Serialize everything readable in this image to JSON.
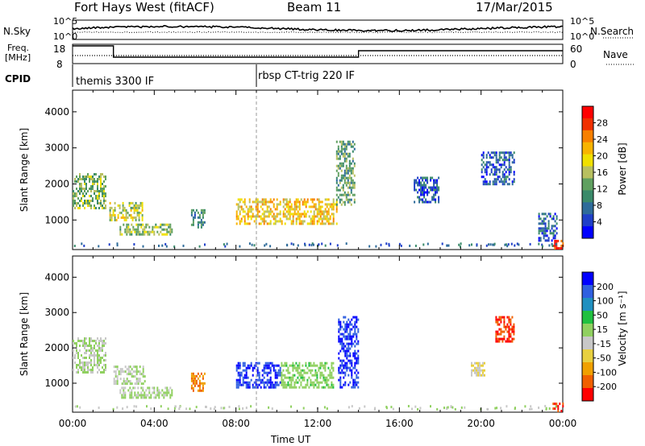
{
  "header": {
    "radar": "Fort Hays West (fitACF)",
    "beam": "Beam 11",
    "date": "17/Mar/2015"
  },
  "panels": {
    "nsky_label": "N.Sky",
    "nsearch_label": "N.Search",
    "nsky_ticks": [
      "10^5",
      "10^0"
    ],
    "nsearch_ticks": [
      "10^5",
      "10^0"
    ],
    "freq_label_1": "Freq.",
    "freq_label_2": "[MHz]",
    "freq_ticks": [
      "18",
      "8"
    ],
    "nave_label": "Nave",
    "nave_ticks": [
      "60",
      "0"
    ],
    "cpid_label": "CPID",
    "cpid_1": "themis 3300 IF",
    "cpid_2": "rbsp CT-trig 220 IF"
  },
  "axes": {
    "ylabel": "Slant Range [km]",
    "xlabel": "Time UT",
    "x_ticks": [
      "00:00",
      "04:00",
      "08:00",
      "12:00",
      "16:00",
      "20:00",
      "00:00"
    ],
    "y_ticks": [
      "1000",
      "2000",
      "3000",
      "4000"
    ]
  },
  "colorbars": {
    "power_label": "Power [dB]",
    "power_ticks": [
      "4",
      "8",
      "12",
      "16",
      "20",
      "24",
      "28"
    ],
    "power_colors": [
      "#0000ff",
      "#1f3fc8",
      "#2e6b9a",
      "#3a8a6a",
      "#60a060",
      "#b8c060",
      "#f0e000",
      "#f8b400",
      "#f88000",
      "#f03000",
      "#ff0000"
    ],
    "velocity_label": "Velocity [m s⁻¹]",
    "velocity_ticks": [
      "200",
      "100",
      "50",
      "15",
      "-15",
      "-50",
      "-100",
      "-200"
    ],
    "velocity_colors": [
      "#0000ff",
      "#3060e0",
      "#2090c0",
      "#20c040",
      "#90d060",
      "#c8c8c8",
      "#e8d040",
      "#f0a000",
      "#f06000",
      "#ff0000"
    ]
  },
  "chart_data": [
    {
      "type": "heatmap",
      "title": "Power",
      "xlabel": "Time UT",
      "ylabel": "Slant Range [km]",
      "xlim": [
        0,
        24
      ],
      "ylim": [
        180,
        4600
      ],
      "colorbar": {
        "label": "Power [dB]",
        "range": [
          0,
          32
        ]
      },
      "regions": [
        {
          "t": [
            0.0,
            1.6
          ],
          "r": [
            1300,
            2300
          ],
          "value": 14
        },
        {
          "t": [
            1.8,
            3.4
          ],
          "r": [
            1000,
            1500
          ],
          "value": 16
        },
        {
          "t": [
            2.3,
            4.9
          ],
          "r": [
            600,
            900
          ],
          "value": 14
        },
        {
          "t": [
            5.8,
            6.5
          ],
          "r": [
            800,
            1300
          ],
          "value": 10
        },
        {
          "t": [
            8.0,
            12.9
          ],
          "r": [
            900,
            1600
          ],
          "value": 20
        },
        {
          "t": [
            12.9,
            13.8
          ],
          "r": [
            1400,
            3200
          ],
          "value": 12
        },
        {
          "t": [
            16.7,
            17.9
          ],
          "r": [
            1500,
            2200
          ],
          "value": 6
        },
        {
          "t": [
            20.0,
            21.6
          ],
          "r": [
            2000,
            2900
          ],
          "value": 6
        },
        {
          "t": [
            22.8,
            23.7
          ],
          "r": [
            400,
            1200
          ],
          "value": 6
        },
        {
          "t": [
            23.5,
            24.0
          ],
          "r": [
            200,
            450
          ],
          "value": 28
        }
      ]
    },
    {
      "type": "heatmap",
      "title": "Velocity",
      "xlabel": "Time UT",
      "ylabel": "Slant Range [km]",
      "xlim": [
        0,
        24
      ],
      "ylim": [
        180,
        4600
      ],
      "colorbar": {
        "label": "Velocity [m s⁻¹]",
        "range": [
          -250,
          250
        ]
      },
      "regions": [
        {
          "t": [
            0.0,
            1.6
          ],
          "r": [
            1300,
            2300
          ],
          "value": 0
        },
        {
          "t": [
            2.0,
            3.5
          ],
          "r": [
            1000,
            1500
          ],
          "value": 0
        },
        {
          "t": [
            2.3,
            4.9
          ],
          "r": [
            600,
            900
          ],
          "value": 0
        },
        {
          "t": [
            5.8,
            6.5
          ],
          "r": [
            800,
            1300
          ],
          "value": -150
        },
        {
          "t": [
            8.0,
            10.2
          ],
          "r": [
            900,
            1600
          ],
          "value": 200
        },
        {
          "t": [
            10.2,
            12.8
          ],
          "r": [
            900,
            1600
          ],
          "value": 30
        },
        {
          "t": [
            13.0,
            14.0
          ],
          "r": [
            900,
            2900
          ],
          "value": 200
        },
        {
          "t": [
            19.5,
            20.2
          ],
          "r": [
            1200,
            1600
          ],
          "value": -50
        },
        {
          "t": [
            20.7,
            21.6
          ],
          "r": [
            2200,
            2900
          ],
          "value": -200
        },
        {
          "t": [
            23.5,
            24.0
          ],
          "r": [
            200,
            450
          ],
          "value": -200
        }
      ]
    }
  ]
}
